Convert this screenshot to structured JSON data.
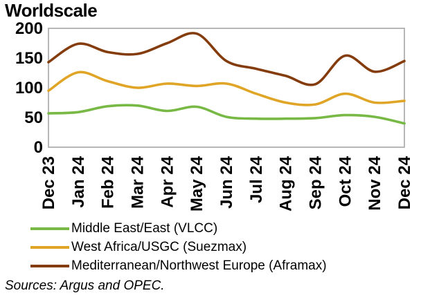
{
  "title": "Worldscale",
  "sources": "Sources: Argus and OPEC.",
  "colors": {
    "vlcc_green": "#77B944",
    "suezmax_gold": "#E0A526",
    "aframax_brown": "#843C0C",
    "plot_border_gray": "#AFAFAF",
    "text_black": "#000000"
  },
  "chart_data": {
    "type": "line",
    "title": "Worldscale",
    "x": [
      "Dec 23",
      "Jan 24",
      "Feb 24",
      "Mar 24",
      "Apr 24",
      "May 24",
      "Jun 24",
      "Jul 24",
      "Aug 24",
      "Sep 24",
      "Oct 24",
      "Nov 24",
      "Dec 24"
    ],
    "xlabel": "",
    "ylabel": "",
    "ylim": [
      0,
      200
    ],
    "y_ticks": [
      0,
      50,
      100,
      150,
      200
    ],
    "grid": false,
    "legend_position": "bottom-left",
    "series": [
      {
        "name": "Middle East/East (VLCC)",
        "color": "#77B944",
        "values": [
          57,
          59,
          69,
          70,
          61,
          68,
          51,
          48,
          48,
          49,
          54,
          51,
          40
        ]
      },
      {
        "name": "West Africa/USGC (Suezmax)",
        "color": "#E0A526",
        "values": [
          95,
          126,
          111,
          100,
          107,
          103,
          107,
          90,
          75,
          72,
          90,
          75,
          78
        ]
      },
      {
        "name": "Mediterranean/Northwest Europe (Aframax)",
        "color": "#843C0C",
        "values": [
          143,
          174,
          160,
          157,
          175,
          191,
          145,
          132,
          120,
          106,
          154,
          127,
          145
        ]
      }
    ]
  }
}
